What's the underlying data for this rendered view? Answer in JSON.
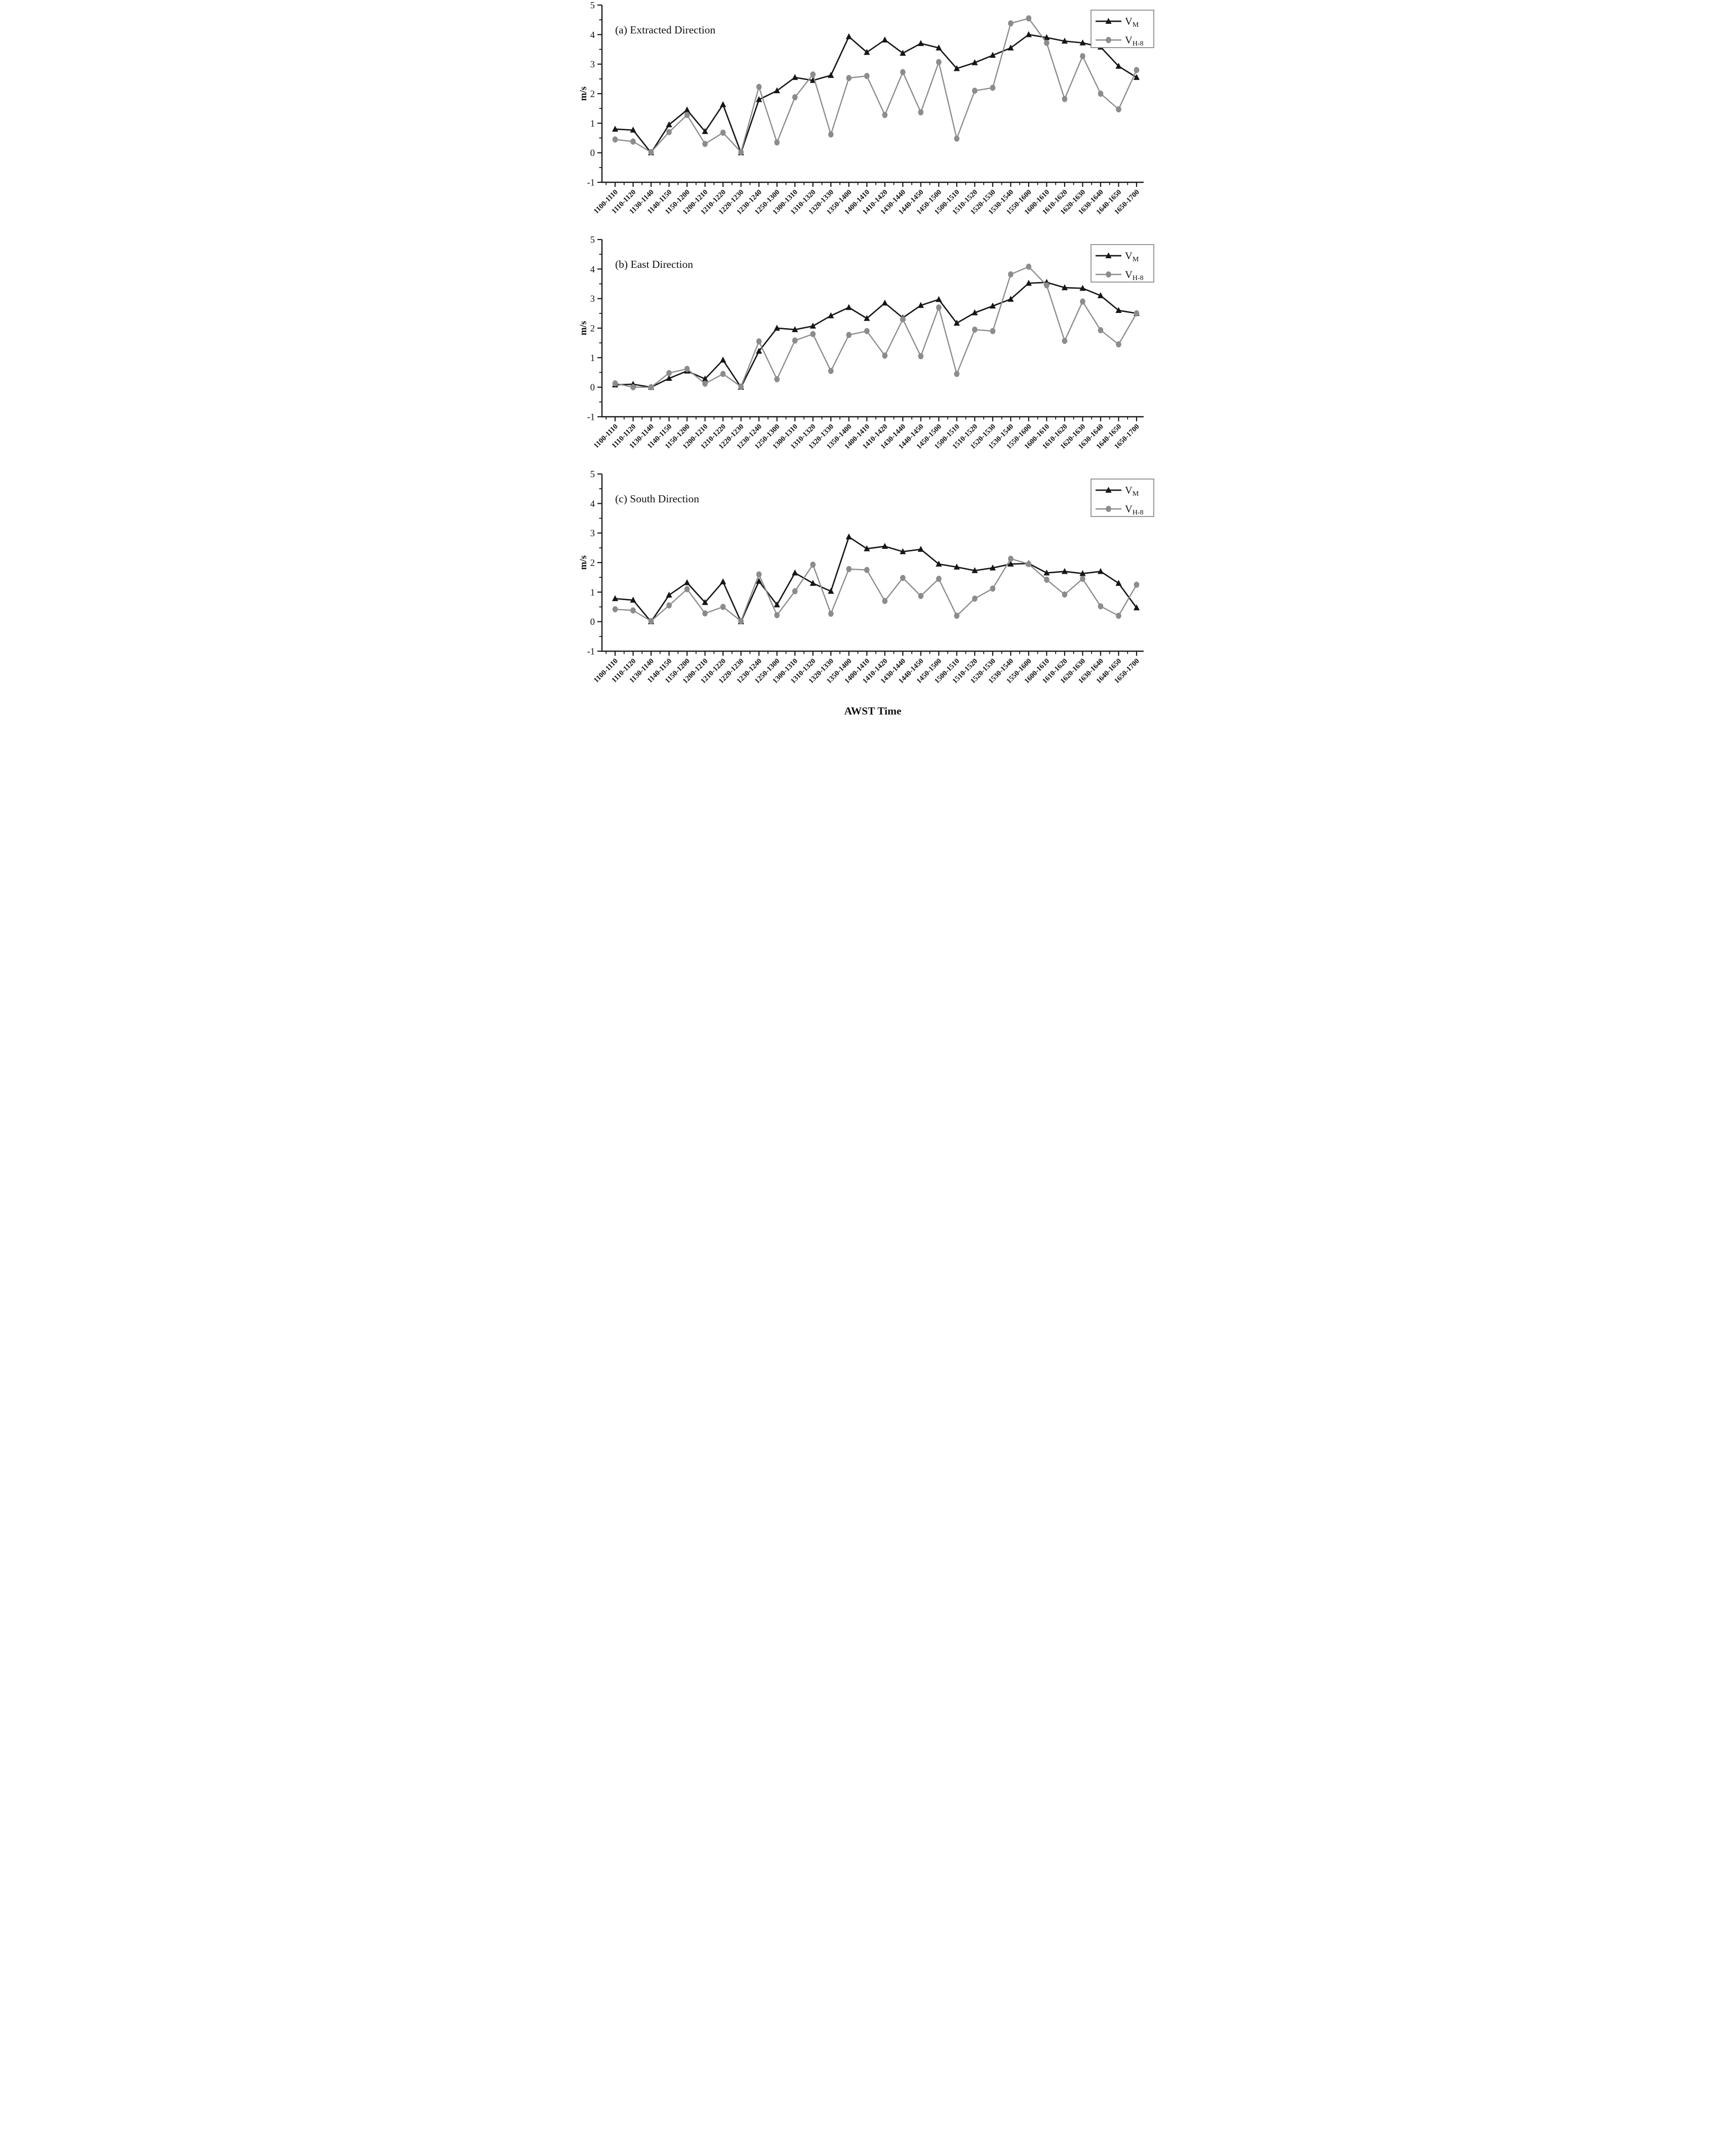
{
  "figure": {
    "xlabel": "AWST Time",
    "ylabel": "m/s",
    "ylim": [
      -1,
      5
    ],
    "yticks": [
      -1,
      0,
      1,
      2,
      3,
      4,
      5
    ],
    "colors": {
      "vm": "#161616",
      "vh8": "#8c8c8c",
      "axis": "#1a1a1a",
      "legend_border": "#7f7f7f",
      "background": "#ffffff"
    },
    "legend": {
      "position": "top-right",
      "items": [
        {
          "base": "V",
          "sub": "M",
          "series": "vm",
          "marker": "triangle"
        },
        {
          "base": "V",
          "sub": "H-8",
          "series": "vh8",
          "marker": "circle"
        }
      ]
    }
  },
  "chart_data": [
    {
      "type": "line",
      "panel": "a",
      "title": "(a) Extracted Direction",
      "ylabel": "m/s",
      "ylim": [
        -1,
        5
      ],
      "yticks": [
        -1,
        0,
        1,
        2,
        3,
        4,
        5
      ],
      "grid": false,
      "legend_position": "top-right",
      "categories": [
        "1100-1110",
        "1110-1120",
        "1130-1140",
        "1140-1150",
        "1150-1200",
        "1200-1210",
        "1210-1220",
        "1220-1230",
        "1230-1240",
        "1250-1300",
        "1300-1310",
        "1310-1320",
        "1320-1330",
        "1350-1400",
        "1400-1410",
        "1410-1420",
        "1430-1440",
        "1440-1450",
        "1450-1500",
        "1500-1510",
        "1510-1520",
        "1520-1530",
        "1530-1540",
        "1550-1600",
        "1600-1610",
        "1610-1620",
        "1620-1630",
        "1630-1640",
        "1640-1650",
        "1650-1700"
      ],
      "series": [
        {
          "name": "V_M",
          "marker": "triangle",
          "color": "#161616",
          "values": [
            0.8,
            0.77,
            0.0,
            0.95,
            1.45,
            0.72,
            1.63,
            0.0,
            1.8,
            2.1,
            2.55,
            2.45,
            2.62,
            3.93,
            3.4,
            3.82,
            3.37,
            3.7,
            3.55,
            2.85,
            3.05,
            3.3,
            3.55,
            4.0,
            3.9,
            3.78,
            3.72,
            3.58,
            2.93,
            2.55
          ]
        },
        {
          "name": "V_H-8",
          "marker": "circle",
          "color": "#8c8c8c",
          "values": [
            0.45,
            0.38,
            0.02,
            0.7,
            1.28,
            0.3,
            0.68,
            0.02,
            2.23,
            0.35,
            1.88,
            2.65,
            0.62,
            2.53,
            2.6,
            1.28,
            2.73,
            1.37,
            3.07,
            0.48,
            2.1,
            2.2,
            4.38,
            4.55,
            3.72,
            1.82,
            3.27,
            2.0,
            1.47,
            2.8
          ]
        }
      ]
    },
    {
      "type": "line",
      "panel": "b",
      "title": "(b) East Direction",
      "ylabel": "m/s",
      "ylim": [
        -1,
        5
      ],
      "yticks": [
        -1,
        0,
        1,
        2,
        3,
        4,
        5
      ],
      "grid": false,
      "legend_position": "top-right",
      "categories": [
        "1100-1110",
        "1110-1120",
        "1130-1140",
        "1140-1150",
        "1150-1200",
        "1200-1210",
        "1210-1220",
        "1220-1230",
        "1230-1240",
        "1250-1300",
        "1300-1310",
        "1310-1320",
        "1320-1330",
        "1350-1400",
        "1400-1410",
        "1410-1420",
        "1430-1440",
        "1440-1450",
        "1450-1500",
        "1500-1510",
        "1510-1520",
        "1520-1530",
        "1530-1540",
        "1550-1600",
        "1600-1610",
        "1610-1620",
        "1620-1630",
        "1630-1640",
        "1640-1650",
        "1650-1700"
      ],
      "series": [
        {
          "name": "V_M",
          "marker": "triangle",
          "color": "#161616",
          "values": [
            0.08,
            0.1,
            0.0,
            0.3,
            0.55,
            0.28,
            0.92,
            0.0,
            1.22,
            2.0,
            1.95,
            2.07,
            2.42,
            2.7,
            2.33,
            2.85,
            2.35,
            2.77,
            2.97,
            2.17,
            2.52,
            2.75,
            2.98,
            3.52,
            3.55,
            3.37,
            3.35,
            3.1,
            2.6,
            2.5
          ]
        },
        {
          "name": "V_H-8",
          "marker": "circle",
          "color": "#8c8c8c",
          "values": [
            0.13,
            0.0,
            0.0,
            0.48,
            0.62,
            0.12,
            0.45,
            0.02,
            1.55,
            0.27,
            1.58,
            1.8,
            0.55,
            1.77,
            1.9,
            1.07,
            2.3,
            1.05,
            2.7,
            0.45,
            1.95,
            1.9,
            3.82,
            4.08,
            3.45,
            1.57,
            2.9,
            1.93,
            1.45,
            2.5
          ]
        }
      ]
    },
    {
      "type": "line",
      "panel": "c",
      "title": "(c) South Direction",
      "ylabel": "m/s",
      "xlabel": "AWST Time",
      "ylim": [
        -1,
        5
      ],
      "yticks": [
        -1,
        0,
        1,
        2,
        3,
        4,
        5
      ],
      "grid": false,
      "legend_position": "top-right",
      "categories": [
        "1100-1110",
        "1110-1120",
        "1130-1140",
        "1140-1150",
        "1150-1200",
        "1200-1210",
        "1210-1220",
        "1220-1230",
        "1230-1240",
        "1250-1300",
        "1300-1310",
        "1310-1320",
        "1320-1330",
        "1350-1400",
        "1400-1410",
        "1410-1420",
        "1430-1440",
        "1440-1450",
        "1450-1500",
        "1500-1510",
        "1510-1520",
        "1520-1530",
        "1530-1540",
        "1550-1600",
        "1600-1610",
        "1610-1620",
        "1620-1630",
        "1630-1640",
        "1640-1650",
        "1650-1700"
      ],
      "series": [
        {
          "name": "V_M",
          "marker": "triangle",
          "color": "#161616",
          "values": [
            0.78,
            0.73,
            0.0,
            0.9,
            1.32,
            0.65,
            1.35,
            0.0,
            1.37,
            0.57,
            1.65,
            1.3,
            1.03,
            2.87,
            2.47,
            2.55,
            2.37,
            2.45,
            1.95,
            1.85,
            1.73,
            1.82,
            1.95,
            1.97,
            1.65,
            1.7,
            1.63,
            1.7,
            1.3,
            0.47
          ]
        },
        {
          "name": "V_H-8",
          "marker": "circle",
          "color": "#8c8c8c",
          "values": [
            0.42,
            0.38,
            0.02,
            0.55,
            1.1,
            0.28,
            0.5,
            0.02,
            1.6,
            0.22,
            1.03,
            1.93,
            0.27,
            1.78,
            1.75,
            0.7,
            1.48,
            0.87,
            1.45,
            0.2,
            0.78,
            1.12,
            2.13,
            1.95,
            1.42,
            0.92,
            1.45,
            0.52,
            0.2,
            1.25
          ]
        }
      ]
    }
  ]
}
